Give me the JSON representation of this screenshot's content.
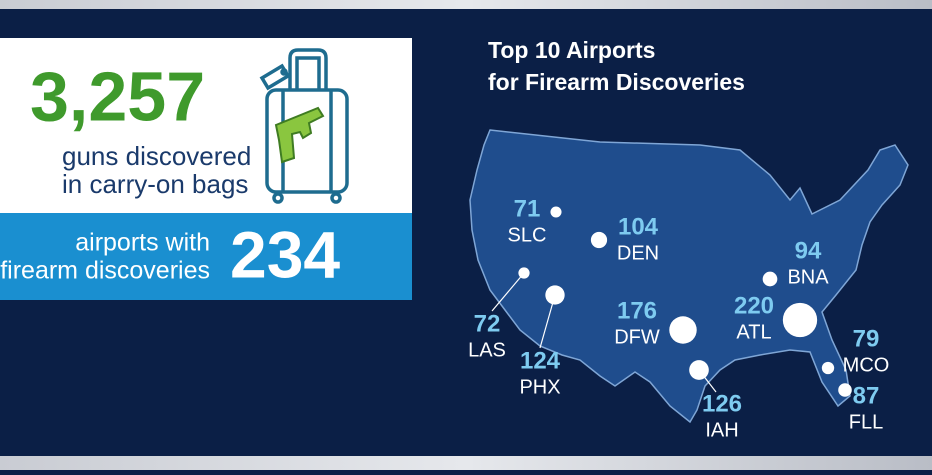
{
  "stats": {
    "guns": {
      "value": "3,257",
      "label_lines": [
        "guns discovered",
        "in carry-on bags"
      ]
    },
    "airports": {
      "label_lines": [
        "airports with",
        "firearm discoveries"
      ],
      "value": "234"
    }
  },
  "map": {
    "title_lines": [
      "Top 10 Airports",
      "for Firearm Discoveries"
    ],
    "airports": [
      {
        "code": "SLC",
        "count": 71
      },
      {
        "code": "DEN",
        "count": 104
      },
      {
        "code": "BNA",
        "count": 94
      },
      {
        "code": "LAS",
        "count": 72
      },
      {
        "code": "PHX",
        "count": 124
      },
      {
        "code": "DFW",
        "count": 176
      },
      {
        "code": "ATL",
        "count": 220
      },
      {
        "code": "MCO",
        "count": 79
      },
      {
        "code": "FLL",
        "count": 87
      },
      {
        "code": "IAH",
        "count": 126
      }
    ]
  }
}
